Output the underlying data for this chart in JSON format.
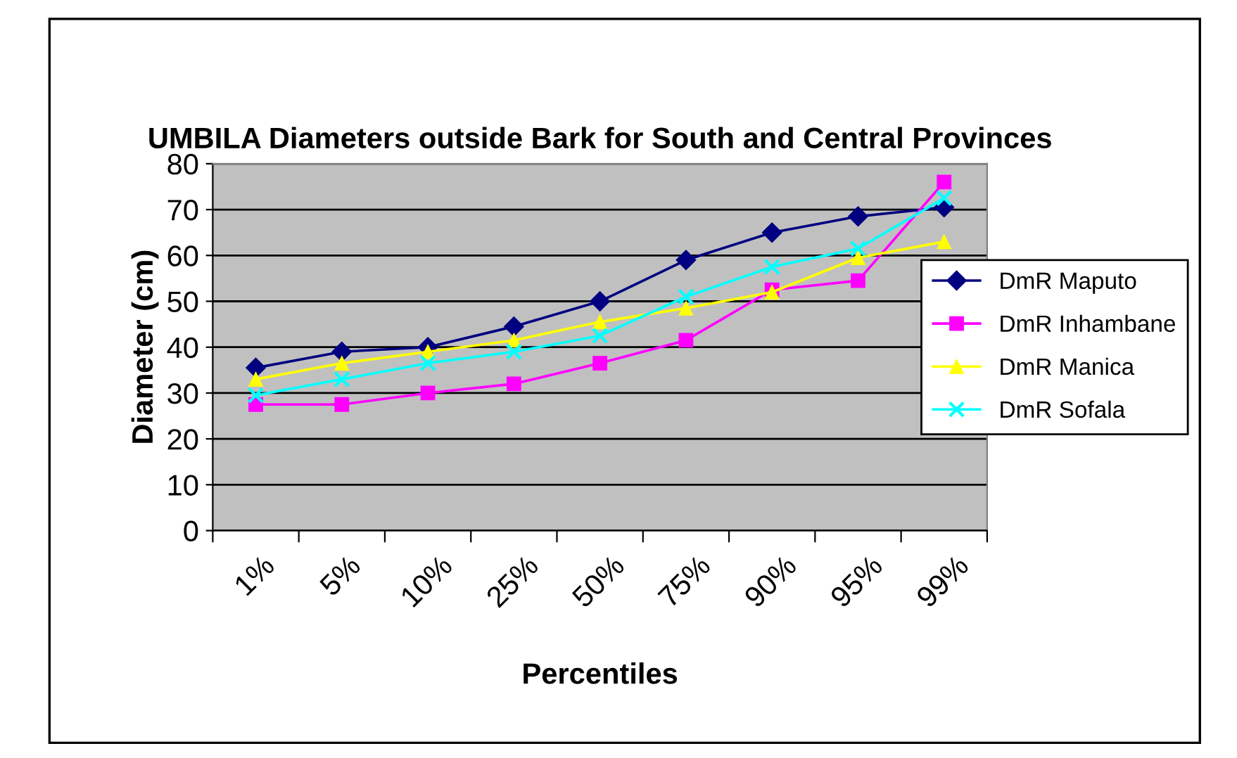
{
  "chart_data": {
    "type": "line",
    "title": "UMBILA Diameters outside Bark for South and Central Provinces",
    "xlabel": "Percentiles",
    "ylabel": "Diameter (cm)",
    "categories": [
      "1%",
      "5%",
      "10%",
      "25%",
      "50%",
      "75%",
      "90%",
      "95%",
      "99%"
    ],
    "series": [
      {
        "name": "DmR Maputo",
        "color": "#000080",
        "marker": "diamond",
        "values": [
          35.5,
          39,
          40,
          44.5,
          50,
          59,
          65,
          68.5,
          70.5
        ]
      },
      {
        "name": "DmR Inhambane",
        "color": "#ff00ff",
        "marker": "square",
        "values": [
          27.5,
          27.5,
          30,
          32,
          36.5,
          41.5,
          52.5,
          54.5,
          76
        ]
      },
      {
        "name": "DmR Manica",
        "color": "#ffff00",
        "marker": "triangle",
        "values": [
          33,
          36.5,
          39,
          41.5,
          45.5,
          48.5,
          52,
          59.5,
          63
        ]
      },
      {
        "name": "DmR Sofala",
        "color": "#00ffff",
        "marker": "cross",
        "values": [
          29.5,
          33,
          36.5,
          39,
          42.5,
          51,
          57.5,
          61.5,
          72.5
        ]
      }
    ],
    "ylim": [
      0,
      80
    ],
    "yticks": [
      0,
      10,
      20,
      30,
      40,
      50,
      60,
      70,
      80
    ],
    "grid": "y",
    "legend": "right",
    "line_style": "solid"
  }
}
